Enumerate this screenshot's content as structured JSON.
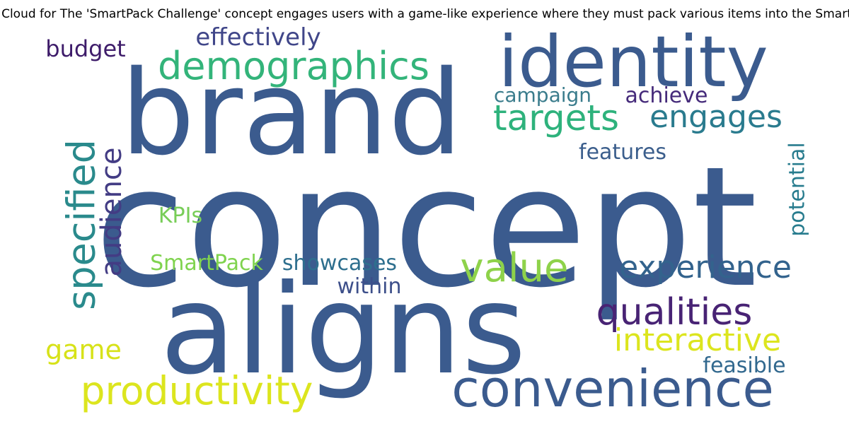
{
  "title": "d Cloud for The 'SmartPack Challenge' concept engages users with a game-like experience where they must pack various items into the SmartP",
  "words": [
    {
      "text": "concept",
      "color": "#3b5b8e"
    },
    {
      "text": "brand",
      "color": "#3b5b8e"
    },
    {
      "text": "aligns",
      "color": "#3b5b8e"
    },
    {
      "text": "identity",
      "color": "#3b5b8e"
    },
    {
      "text": "convenience",
      "color": "#3b5b8e"
    },
    {
      "text": "productivity",
      "color": "#dce51e"
    },
    {
      "text": "demographics",
      "color": "#33b47a"
    },
    {
      "text": "specified",
      "color": "#2a8a8c"
    },
    {
      "text": "targets",
      "color": "#2eb27c"
    },
    {
      "text": "engages",
      "color": "#2a7b8e"
    },
    {
      "text": "qualities",
      "color": "#482374"
    },
    {
      "text": "value",
      "color": "#8ed24a"
    },
    {
      "text": "experience",
      "color": "#33638d"
    },
    {
      "text": "audience",
      "color": "#433c84"
    },
    {
      "text": "interactive",
      "color": "#dce51e"
    },
    {
      "text": "effectively",
      "color": "#404689"
    },
    {
      "text": "budget",
      "color": "#3e1c6a"
    },
    {
      "text": "campaign",
      "color": "#3a7c8c"
    },
    {
      "text": "achieve",
      "color": "#452a7a"
    },
    {
      "text": "features",
      "color": "#3b5e8c"
    },
    {
      "text": "potential",
      "color": "#287c8e"
    },
    {
      "text": "KPIs",
      "color": "#78cd58"
    },
    {
      "text": "SmartPack",
      "color": "#7fd34e"
    },
    {
      "text": "showcases",
      "color": "#2e6f8e"
    },
    {
      "text": "within",
      "color": "#3d4f8a"
    },
    {
      "text": "game",
      "color": "#d7e219"
    },
    {
      "text": "feasible",
      "color": "#31688e"
    }
  ]
}
